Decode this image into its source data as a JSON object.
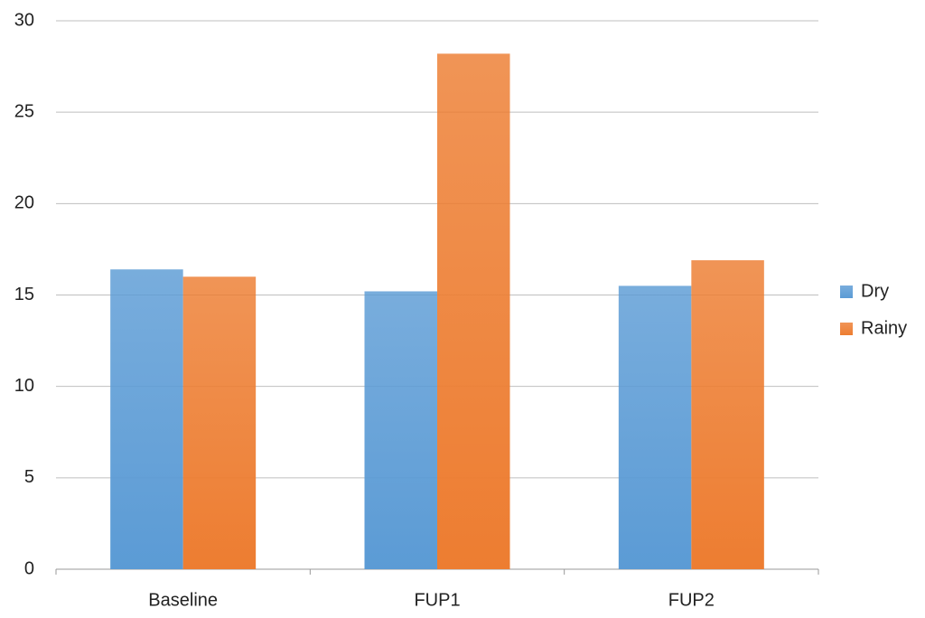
{
  "chart_data": {
    "type": "bar",
    "categories": [
      "Baseline",
      "FUP1",
      "FUP2"
    ],
    "series": [
      {
        "name": "Dry",
        "color": "#5b9bd5",
        "values": [
          16.4,
          15.2,
          15.5
        ]
      },
      {
        "name": "Rainy",
        "color": "#ed7d31",
        "values": [
          16.0,
          28.2,
          16.9
        ]
      }
    ],
    "ylim": [
      0,
      30
    ],
    "yticks": [
      0,
      5,
      10,
      15,
      20,
      25,
      30
    ],
    "grid": true,
    "legend": "right"
  }
}
